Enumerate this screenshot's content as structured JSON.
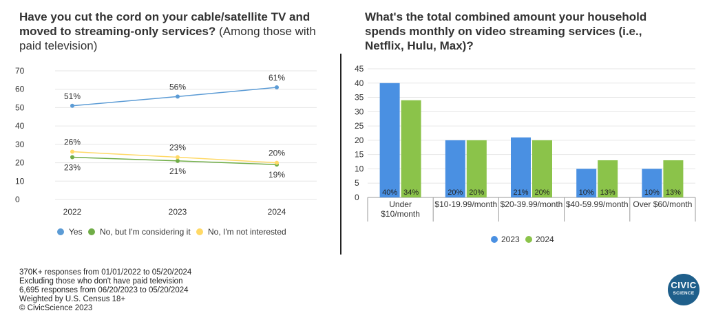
{
  "footer": {
    "line1": "370K+ responses from 01/01/2022 to 05/20/2024",
    "line2": "Excluding those who don't have paid television",
    "line3": "6,695 responses from 06/20/2023 to 05/20/2024",
    "line4": "Weighted by U.S. Census 18+",
    "line5": "© CivicScience 2023"
  },
  "logo": {
    "line1": "CIVIC",
    "line2": "SCIENCE",
    "color": "#1f5f8b"
  },
  "chart_data": [
    {
      "type": "line",
      "title": "Have you cut the cord on your cable/satellite TV and moved to streaming-only services?",
      "subtitle": "(Among those with paid television)",
      "categories": [
        "2022",
        "2023",
        "2024"
      ],
      "ylim": [
        0,
        70
      ],
      "yticks": [
        "0",
        "10",
        "20",
        "30",
        "40",
        "50",
        "60",
        "70"
      ],
      "grid": true,
      "legend": "bottom",
      "series": [
        {
          "name": "Yes",
          "color": "#5b9bd5",
          "values": [
            51,
            56,
            61
          ],
          "labels": [
            "51%",
            "56%",
            "61%"
          ]
        },
        {
          "name": "No, but I'm considering it",
          "color": "#70ad47",
          "values": [
            23,
            21,
            19
          ],
          "labels": [
            "23%",
            "21%",
            "19%"
          ]
        },
        {
          "name": "No, I'm not interested",
          "color": "#ffd966",
          "values": [
            26,
            23,
            20
          ],
          "labels": [
            "26%",
            "23%",
            "20%"
          ]
        }
      ]
    },
    {
      "type": "bar",
      "title": "What's the total combined amount your household spends monthly on video streaming services (i.e., Netflix, Hulu, Max)?",
      "categories": [
        "Under $10/month",
        "$10-19.99/month",
        "$20-39.99/month",
        "$40-59.99/month",
        "Over $60/month"
      ],
      "ylim": [
        0,
        45
      ],
      "yticks": [
        "0",
        "5",
        "10",
        "15",
        "20",
        "25",
        "30",
        "35",
        "40",
        "45"
      ],
      "grid": true,
      "legend": "bottom",
      "series": [
        {
          "name": "2023",
          "color": "#4a90e2",
          "values": [
            40,
            20,
            21,
            10,
            10
          ],
          "labels": [
            "40%",
            "20%",
            "21%",
            "10%",
            "10%"
          ]
        },
        {
          "name": "2024",
          "color": "#8bc34a",
          "values": [
            34,
            20,
            20,
            13,
            13
          ],
          "labels": [
            "34%",
            "20%",
            "20%",
            "13%",
            "13%"
          ]
        }
      ]
    }
  ]
}
